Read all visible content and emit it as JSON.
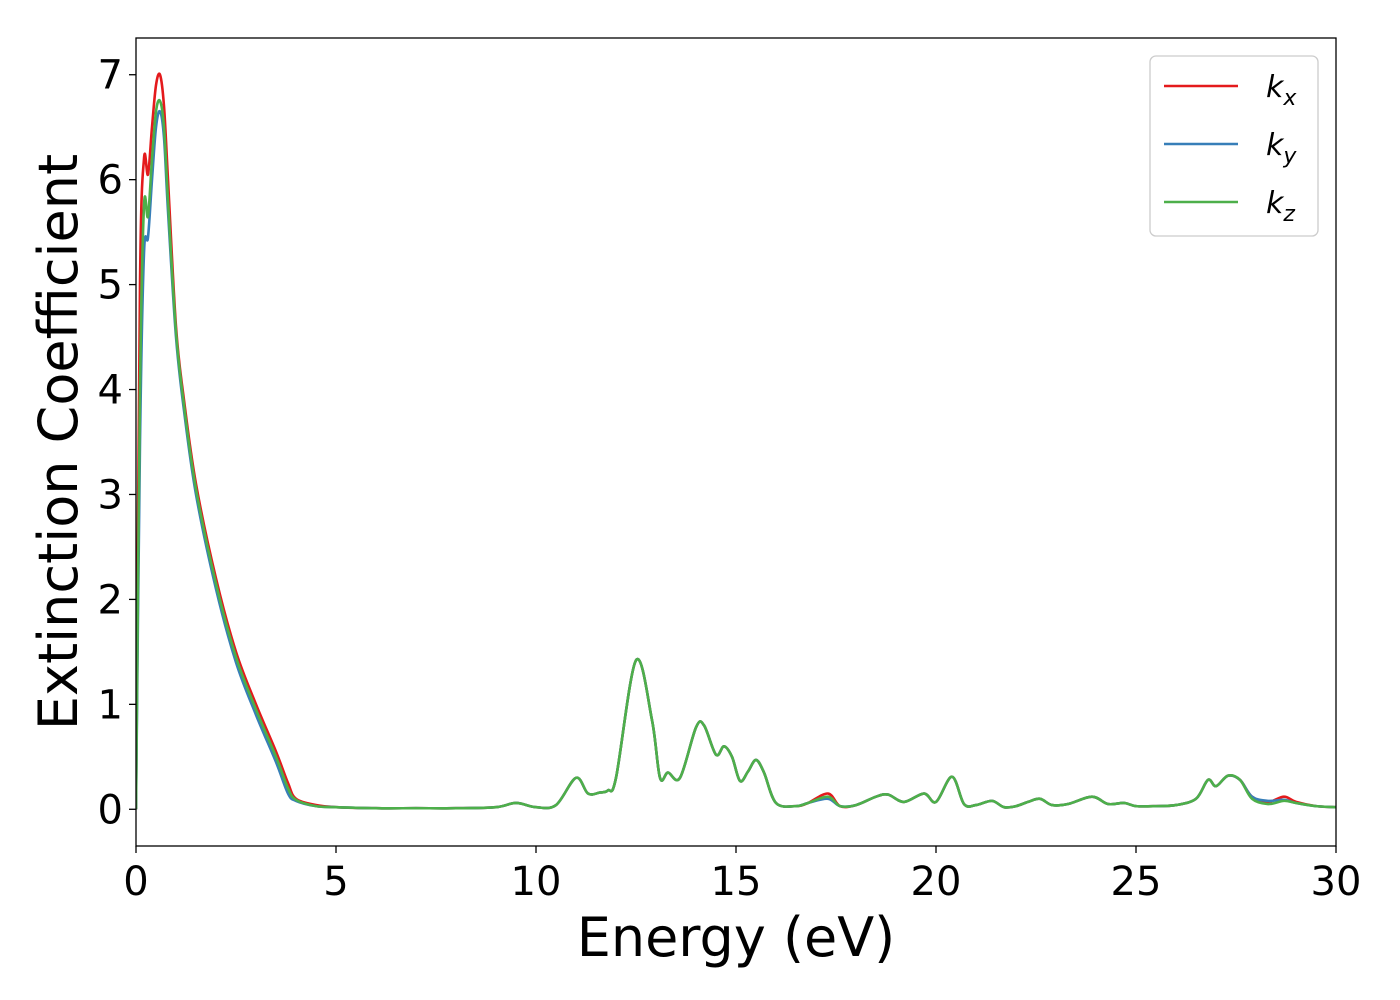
{
  "chart_data": {
    "type": "line",
    "title": "",
    "xlabel": "Energy (eV)",
    "ylabel": "Extinction Coefficient",
    "xlim": [
      0,
      30
    ],
    "ylim": [
      -0.35,
      7.35
    ],
    "xticks": [
      0,
      5,
      10,
      15,
      20,
      25,
      30
    ],
    "xtick_labels": [
      "0",
      "5",
      "10",
      "15",
      "20",
      "25",
      "30"
    ],
    "yticks": [
      0,
      1,
      2,
      3,
      4,
      5,
      6,
      7
    ],
    "ytick_labels": [
      "0",
      "1",
      "2",
      "3",
      "4",
      "5",
      "6",
      "7"
    ],
    "grid": false,
    "legend_position": "top-right",
    "x": [
      0,
      0.1,
      0.2,
      0.3,
      0.4,
      0.5,
      0.6,
      0.7,
      0.8,
      1.0,
      1.2,
      1.5,
      2.0,
      2.5,
      3.0,
      3.5,
      3.8,
      4.0,
      4.5,
      5,
      6,
      7,
      8,
      9,
      9.5,
      10,
      10.5,
      11.0,
      11.3,
      11.6,
      11.8,
      12.0,
      12.5,
      12.9,
      13.1,
      13.3,
      13.6,
      14.0,
      14.2,
      14.5,
      14.7,
      14.9,
      15.1,
      15.3,
      15.5,
      15.7,
      16.0,
      16.5,
      16.8,
      17.3,
      17.6,
      18.0,
      18.5,
      18.8,
      19.2,
      19.7,
      20.0,
      20.4,
      20.7,
      21.0,
      21.4,
      21.7,
      22.0,
      22.3,
      22.6,
      22.9,
      23.3,
      23.9,
      24.3,
      24.7,
      25.0,
      25.5,
      26.0,
      26.5,
      26.8,
      27.0,
      27.3,
      27.6,
      27.9,
      28.3,
      28.7,
      29.0,
      29.5,
      30.0
    ],
    "series": [
      {
        "name": "k_x",
        "color": "#e41a1c",
        "values": [
          0,
          5.0,
          6.2,
          6.05,
          6.5,
          6.9,
          7.0,
          6.7,
          6.0,
          4.6,
          3.9,
          3.1,
          2.2,
          1.5,
          1.0,
          0.55,
          0.25,
          0.1,
          0.04,
          0.02,
          0.01,
          0.01,
          0.01,
          0.02,
          0.06,
          0.02,
          0.04,
          0.3,
          0.15,
          0.16,
          0.18,
          0.3,
          1.42,
          0.85,
          0.3,
          0.35,
          0.3,
          0.78,
          0.8,
          0.52,
          0.6,
          0.5,
          0.27,
          0.36,
          0.47,
          0.35,
          0.06,
          0.03,
          0.06,
          0.15,
          0.03,
          0.04,
          0.12,
          0.14,
          0.07,
          0.15,
          0.07,
          0.31,
          0.05,
          0.04,
          0.08,
          0.02,
          0.03,
          0.07,
          0.1,
          0.04,
          0.05,
          0.12,
          0.05,
          0.06,
          0.03,
          0.03,
          0.04,
          0.1,
          0.28,
          0.22,
          0.32,
          0.28,
          0.12,
          0.07,
          0.12,
          0.07,
          0.03,
          0.02
        ]
      },
      {
        "name": "k_y",
        "color": "#377eb8",
        "values": [
          0,
          3.5,
          5.3,
          5.45,
          6.0,
          6.5,
          6.65,
          6.4,
          5.7,
          4.5,
          3.8,
          3.0,
          2.1,
          1.4,
          0.9,
          0.45,
          0.15,
          0.08,
          0.03,
          0.02,
          0.01,
          0.01,
          0.01,
          0.02,
          0.06,
          0.02,
          0.04,
          0.3,
          0.15,
          0.16,
          0.18,
          0.3,
          1.42,
          0.85,
          0.3,
          0.35,
          0.3,
          0.78,
          0.8,
          0.52,
          0.6,
          0.5,
          0.27,
          0.36,
          0.47,
          0.35,
          0.06,
          0.03,
          0.06,
          0.1,
          0.03,
          0.04,
          0.12,
          0.14,
          0.07,
          0.15,
          0.07,
          0.31,
          0.05,
          0.04,
          0.08,
          0.02,
          0.03,
          0.07,
          0.1,
          0.04,
          0.05,
          0.12,
          0.05,
          0.06,
          0.03,
          0.03,
          0.04,
          0.1,
          0.28,
          0.22,
          0.32,
          0.28,
          0.12,
          0.08,
          0.09,
          0.06,
          0.03,
          0.02
        ]
      },
      {
        "name": "k_z",
        "color": "#4daf4a",
        "values": [
          0,
          4.0,
          5.75,
          5.65,
          6.2,
          6.65,
          6.75,
          6.5,
          5.8,
          4.55,
          3.85,
          3.05,
          2.15,
          1.45,
          0.95,
          0.5,
          0.2,
          0.09,
          0.03,
          0.02,
          0.01,
          0.01,
          0.01,
          0.02,
          0.06,
          0.02,
          0.04,
          0.3,
          0.15,
          0.16,
          0.18,
          0.3,
          1.42,
          0.85,
          0.3,
          0.35,
          0.3,
          0.78,
          0.8,
          0.52,
          0.6,
          0.5,
          0.27,
          0.36,
          0.47,
          0.35,
          0.06,
          0.03,
          0.06,
          0.12,
          0.03,
          0.04,
          0.12,
          0.14,
          0.07,
          0.15,
          0.07,
          0.31,
          0.05,
          0.04,
          0.08,
          0.02,
          0.03,
          0.07,
          0.1,
          0.04,
          0.05,
          0.12,
          0.05,
          0.06,
          0.03,
          0.03,
          0.04,
          0.1,
          0.28,
          0.22,
          0.32,
          0.28,
          0.1,
          0.05,
          0.08,
          0.06,
          0.03,
          0.02
        ]
      }
    ],
    "legend": [
      {
        "base": "k",
        "sub": "x"
      },
      {
        "base": "k",
        "sub": "y"
      },
      {
        "base": "k",
        "sub": "z"
      }
    ]
  }
}
